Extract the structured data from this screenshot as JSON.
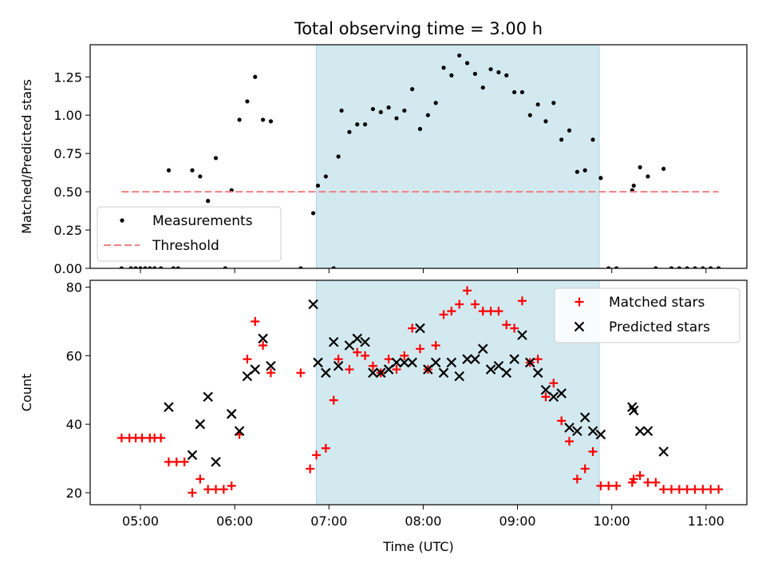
{
  "chart_data": [
    {
      "type": "scatter",
      "title": "Total observing time = 3.00 h",
      "xlabel": "",
      "ylabel": "Matched/Predicted stars",
      "ylim": [
        0,
        1.46
      ],
      "yticks": [
        "0.00",
        "0.25",
        "0.50",
        "0.75",
        "1.00",
        "1.25"
      ],
      "x_axis": {
        "type": "time",
        "range": [
          "04:28",
          "11:26"
        ],
        "tick_labels_shown": false
      },
      "shaded_interval": {
        "start": "06:52",
        "end": "09:52",
        "color": "#d3e9f0"
      },
      "legend": {
        "position": "lower-left",
        "entries": [
          "Measurements",
          "Threshold"
        ]
      },
      "grid": false,
      "series": [
        {
          "name": "Measurements",
          "kind": "scatter",
          "color": "#000000",
          "points": [
            [
              "04:48",
              0
            ],
            [
              "04:54",
              0
            ],
            [
              "04:57",
              0
            ],
            [
              "05:00",
              0
            ],
            [
              "05:03",
              0
            ],
            [
              "05:06",
              0
            ],
            [
              "05:09",
              0
            ],
            [
              "05:13",
              0
            ],
            [
              "05:18",
              0.64
            ],
            [
              "05:21",
              0
            ],
            [
              "05:24",
              0
            ],
            [
              "05:33",
              0.64
            ],
            [
              "05:38",
              0.6
            ],
            [
              "05:43",
              0.44
            ],
            [
              "05:48",
              0.72
            ],
            [
              "05:54",
              0
            ],
            [
              "05:58",
              0.51
            ],
            [
              "06:03",
              0.97
            ],
            [
              "06:08",
              1.09
            ],
            [
              "06:13",
              1.25
            ],
            [
              "06:18",
              0.97
            ],
            [
              "06:23",
              0.96
            ],
            [
              "06:42",
              0
            ],
            [
              "06:50",
              0.36
            ],
            [
              "06:53",
              0.54
            ],
            [
              "06:58",
              0.6
            ],
            [
              "07:03",
              0
            ],
            [
              "07:06",
              0.73
            ],
            [
              "07:08",
              1.03
            ],
            [
              "07:13",
              0.89
            ],
            [
              "07:18",
              0.94
            ],
            [
              "07:23",
              0.94
            ],
            [
              "07:28",
              1.04
            ],
            [
              "07:33",
              1.02
            ],
            [
              "07:38",
              1.05
            ],
            [
              "07:43",
              0.98
            ],
            [
              "07:48",
              1.03
            ],
            [
              "07:53",
              1.17
            ],
            [
              "07:58",
              0.91
            ],
            [
              "08:03",
              1.0
            ],
            [
              "08:08",
              1.08
            ],
            [
              "08:13",
              1.31
            ],
            [
              "08:18",
              1.26
            ],
            [
              "08:23",
              1.39
            ],
            [
              "08:28",
              1.34
            ],
            [
              "08:33",
              1.27
            ],
            [
              "08:38",
              1.18
            ],
            [
              "08:43",
              1.3
            ],
            [
              "08:48",
              1.28
            ],
            [
              "08:53",
              1.26
            ],
            [
              "08:58",
              1.15
            ],
            [
              "09:03",
              1.15
            ],
            [
              "09:08",
              1.0
            ],
            [
              "09:13",
              1.07
            ],
            [
              "09:18",
              0.96
            ],
            [
              "09:23",
              1.08
            ],
            [
              "09:28",
              0.84
            ],
            [
              "09:33",
              0.9
            ],
            [
              "09:38",
              0.63
            ],
            [
              "09:43",
              0.64
            ],
            [
              "09:48",
              0.84
            ],
            [
              "09:53",
              0.59
            ],
            [
              "09:58",
              0
            ],
            [
              "10:03",
              0
            ],
            [
              "10:13",
              0.51
            ],
            [
              "10:14",
              0.54
            ],
            [
              "10:18",
              0.66
            ],
            [
              "10:23",
              0.6
            ],
            [
              "10:28",
              0
            ],
            [
              "10:33",
              0.65
            ],
            [
              "10:38",
              0
            ],
            [
              "10:43",
              0
            ],
            [
              "10:48",
              0
            ],
            [
              "10:53",
              0
            ],
            [
              "10:58",
              0
            ],
            [
              "11:03",
              0
            ],
            [
              "11:08",
              0
            ]
          ]
        },
        {
          "name": "Threshold",
          "kind": "dashed-line",
          "color": "#f08080",
          "x": [
            "04:48",
            "11:08"
          ],
          "y": [
            0.5,
            0.5
          ]
        }
      ]
    },
    {
      "type": "scatter",
      "title": "",
      "xlabel": "Time (UTC)",
      "ylabel": "Count",
      "ylim": [
        16.5,
        82
      ],
      "yticks": [
        "20",
        "40",
        "60",
        "80"
      ],
      "x_axis": {
        "type": "time",
        "range": [
          "04:28",
          "11:26"
        ]
      },
      "xticks": [
        "05:00",
        "06:00",
        "07:00",
        "08:00",
        "09:00",
        "10:00",
        "11:00"
      ],
      "shaded_interval": {
        "start": "06:52",
        "end": "09:52",
        "color": "#d3e9f0"
      },
      "legend": {
        "position": "upper-right",
        "entries": [
          "Matched stars",
          "Predicted stars"
        ]
      },
      "grid": false,
      "series": [
        {
          "name": "Matched stars",
          "marker": "plus",
          "color": "#ff0000",
          "points": [
            [
              "04:48",
              36
            ],
            [
              "04:53",
              36
            ],
            [
              "04:57",
              36
            ],
            [
              "05:01",
              36
            ],
            [
              "05:06",
              36
            ],
            [
              "05:09",
              36
            ],
            [
              "05:13",
              36
            ],
            [
              "05:18",
              29
            ],
            [
              "05:23",
              29
            ],
            [
              "05:28",
              29
            ],
            [
              "05:33",
              20
            ],
            [
              "05:38",
              24
            ],
            [
              "05:43",
              21
            ],
            [
              "05:48",
              21
            ],
            [
              "05:53",
              21
            ],
            [
              "05:58",
              22
            ],
            [
              "06:03",
              37
            ],
            [
              "06:08",
              59
            ],
            [
              "06:13",
              70
            ],
            [
              "06:18",
              63
            ],
            [
              "06:23",
              55
            ],
            [
              "06:42",
              55
            ],
            [
              "06:48",
              27
            ],
            [
              "06:52",
              31
            ],
            [
              "06:58",
              33
            ],
            [
              "07:03",
              47
            ],
            [
              "07:06",
              59
            ],
            [
              "07:13",
              56
            ],
            [
              "07:18",
              61
            ],
            [
              "07:23",
              60
            ],
            [
              "07:28",
              57
            ],
            [
              "07:33",
              55
            ],
            [
              "07:38",
              59
            ],
            [
              "07:43",
              56
            ],
            [
              "07:48",
              60
            ],
            [
              "07:53",
              68
            ],
            [
              "07:58",
              62
            ],
            [
              "08:03",
              56
            ],
            [
              "08:08",
              63
            ],
            [
              "08:13",
              72
            ],
            [
              "08:18",
              73
            ],
            [
              "08:23",
              75
            ],
            [
              "08:28",
              79
            ],
            [
              "08:33",
              75
            ],
            [
              "08:38",
              73
            ],
            [
              "08:43",
              73
            ],
            [
              "08:48",
              73
            ],
            [
              "08:53",
              69
            ],
            [
              "08:58",
              68
            ],
            [
              "09:03",
              76
            ],
            [
              "09:08",
              58
            ],
            [
              "09:13",
              59
            ],
            [
              "09:18",
              48
            ],
            [
              "09:23",
              52
            ],
            [
              "09:28",
              41
            ],
            [
              "09:33",
              35
            ],
            [
              "09:38",
              24
            ],
            [
              "09:43",
              27
            ],
            [
              "09:48",
              32
            ],
            [
              "09:53",
              22
            ],
            [
              "09:58",
              22
            ],
            [
              "10:03",
              22
            ],
            [
              "10:13",
              23
            ],
            [
              "10:14",
              24
            ],
            [
              "10:18",
              25
            ],
            [
              "10:23",
              23
            ],
            [
              "10:28",
              23
            ],
            [
              "10:33",
              21
            ],
            [
              "10:38",
              21
            ],
            [
              "10:43",
              21
            ],
            [
              "10:48",
              21
            ],
            [
              "10:53",
              21
            ],
            [
              "10:58",
              21
            ],
            [
              "11:03",
              21
            ],
            [
              "11:08",
              21
            ]
          ]
        },
        {
          "name": "Predicted stars",
          "marker": "x",
          "color": "#000000",
          "points": [
            [
              "05:18",
              45
            ],
            [
              "05:33",
              31
            ],
            [
              "05:38",
              40
            ],
            [
              "05:43",
              48
            ],
            [
              "05:48",
              29
            ],
            [
              "05:58",
              43
            ],
            [
              "06:03",
              38
            ],
            [
              "06:08",
              54
            ],
            [
              "06:13",
              56
            ],
            [
              "06:18",
              65
            ],
            [
              "06:23",
              57
            ],
            [
              "06:50",
              75
            ],
            [
              "06:53",
              58
            ],
            [
              "06:58",
              55
            ],
            [
              "07:03",
              64
            ],
            [
              "07:06",
              57
            ],
            [
              "07:13",
              63
            ],
            [
              "07:18",
              65
            ],
            [
              "07:23",
              64
            ],
            [
              "07:28",
              55
            ],
            [
              "07:33",
              55
            ],
            [
              "07:38",
              56
            ],
            [
              "07:43",
              58
            ],
            [
              "07:48",
              58
            ],
            [
              "07:53",
              58
            ],
            [
              "07:58",
              68
            ],
            [
              "08:03",
              56
            ],
            [
              "08:08",
              58
            ],
            [
              "08:13",
              55
            ],
            [
              "08:18",
              58
            ],
            [
              "08:23",
              54
            ],
            [
              "08:28",
              59
            ],
            [
              "08:33",
              59
            ],
            [
              "08:38",
              62
            ],
            [
              "08:43",
              56
            ],
            [
              "08:48",
              57
            ],
            [
              "08:53",
              55
            ],
            [
              "08:58",
              59
            ],
            [
              "09:03",
              66
            ],
            [
              "09:08",
              58
            ],
            [
              "09:13",
              55
            ],
            [
              "09:18",
              50
            ],
            [
              "09:23",
              48
            ],
            [
              "09:28",
              49
            ],
            [
              "09:33",
              39
            ],
            [
              "09:38",
              38
            ],
            [
              "09:43",
              42
            ],
            [
              "09:48",
              38
            ],
            [
              "09:53",
              37
            ],
            [
              "10:13",
              45
            ],
            [
              "10:14",
              44
            ],
            [
              "10:18",
              38
            ],
            [
              "10:23",
              38
            ],
            [
              "10:33",
              32
            ]
          ]
        }
      ]
    }
  ]
}
